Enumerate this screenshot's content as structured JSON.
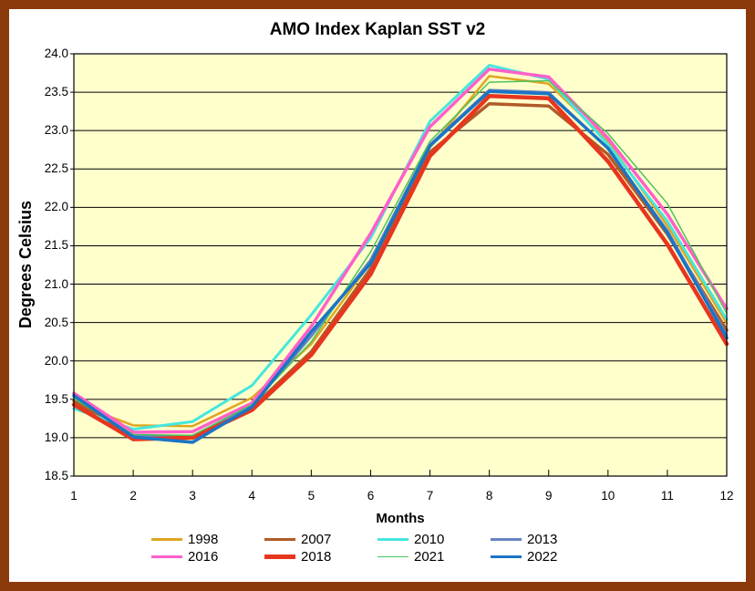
{
  "window": {
    "border_color": "#8B3A0B",
    "background_color": "#FFFFFF"
  },
  "chart_data": {
    "type": "line",
    "title": "AMO Index Kaplan SST v2",
    "xlabel": "Months",
    "ylabel": "Degrees Celsius",
    "plot_background": "#FFFFCC",
    "gridline_color": "#000000",
    "grid": "horizontal-only",
    "legend_position": "bottom",
    "xlim": [
      1,
      12
    ],
    "ylim": [
      18.5,
      24.0
    ],
    "ytick_step": 0.5,
    "x": [
      1,
      2,
      3,
      4,
      5,
      6,
      7,
      8,
      9,
      10,
      11,
      12
    ],
    "xticks": [
      "1",
      "2",
      "3",
      "4",
      "5",
      "6",
      "7",
      "8",
      "9",
      "10",
      "11",
      "12"
    ],
    "yticks": [
      "18.5",
      "19.0",
      "19.5",
      "20.0",
      "20.5",
      "21.0",
      "21.5",
      "22.0",
      "22.5",
      "23.0",
      "23.5",
      "24.0"
    ],
    "series": [
      {
        "name": "1998",
        "color": "#DFA622",
        "width": 2.5,
        "values": [
          19.45,
          19.16,
          19.15,
          19.52,
          20.22,
          21.28,
          22.78,
          23.71,
          23.61,
          22.86,
          21.76,
          20.49
        ]
      },
      {
        "name": "2007",
        "color": "#B15A29",
        "width": 3.5,
        "values": [
          19.48,
          19.02,
          19.02,
          19.39,
          20.12,
          21.2,
          22.72,
          23.35,
          23.32,
          22.69,
          21.65,
          20.4
        ]
      },
      {
        "name": "2010",
        "color": "#45E6DE",
        "width": 3,
        "values": [
          19.38,
          19.11,
          19.21,
          19.68,
          20.6,
          21.6,
          23.12,
          23.85,
          23.67,
          22.82,
          21.82,
          20.54
        ]
      },
      {
        "name": "2013",
        "color": "#6683C1",
        "width": 2.5,
        "values": [
          19.53,
          19.03,
          19.0,
          19.41,
          20.32,
          21.32,
          22.82,
          23.53,
          23.5,
          22.76,
          21.7,
          20.34
        ]
      },
      {
        "name": "2016",
        "color": "#FF5FC9",
        "width": 3.5,
        "values": [
          19.58,
          19.07,
          19.08,
          19.45,
          20.45,
          21.66,
          23.05,
          23.8,
          23.7,
          22.9,
          21.91,
          20.68
        ]
      },
      {
        "name": "2018",
        "color": "#E8351E",
        "width": 4.5,
        "values": [
          19.43,
          18.98,
          19.0,
          19.36,
          20.08,
          21.13,
          22.67,
          23.45,
          23.42,
          22.6,
          21.52,
          20.22
        ]
      },
      {
        "name": "2021",
        "color": "#4CC25C",
        "width": 1.5,
        "values": [
          19.51,
          19.04,
          19.03,
          19.43,
          20.25,
          21.42,
          22.86,
          23.63,
          23.65,
          22.96,
          22.05,
          20.62
        ]
      },
      {
        "name": "2022",
        "color": "#1B74C5",
        "width": 3.5,
        "values": [
          19.55,
          19.01,
          18.94,
          19.4,
          20.38,
          21.27,
          22.8,
          23.51,
          23.48,
          22.77,
          21.67,
          20.3
        ]
      }
    ]
  }
}
